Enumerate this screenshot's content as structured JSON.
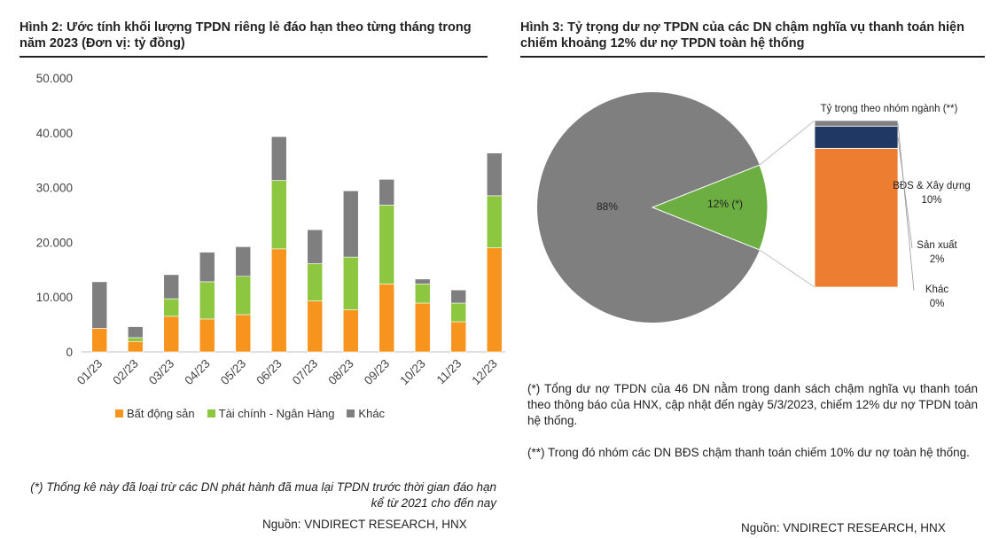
{
  "left": {
    "title": "Hình 2: Ước tính khối lượng TPDN riêng lẻ đáo hạn theo từng tháng trong năm 2023 (Đơn vị: tỷ đồng)",
    "note": "(*) Thống kê này đã loại trừ các DN phát hành đã mua lại TPDN trước thời gian đáo hạn kể từ 2021 cho đến nay",
    "source": "Nguồn: VNDIRECT RESEARCH, HNX"
  },
  "right": {
    "title": "Hình 3: Tỷ trọng dư nợ TPDN của các DN chậm nghĩa vụ thanh toán hiện chiếm khoảng 12% dư nợ TPDN toàn hệ thống",
    "note1": "(*) Tổng dư nợ TPDN của 46 DN nằm trong danh sách chậm nghĩa vụ thanh toán theo thông báo của HNX, cập nhật đến ngày 5/3/2023, chiếm 12% dư nợ TPDN toàn hệ thống.",
    "note2": "(**) Trong đó nhóm các DN BĐS chậm thanh toán chiếm 10% dư nợ toàn hệ thống.",
    "source": "Nguồn: VNDIRECT RESEARCH, HNX"
  },
  "chart_data": [
    {
      "type": "bar",
      "stacked": true,
      "categories": [
        "01/23",
        "02/23",
        "03/23",
        "04/23",
        "05/23",
        "06/23",
        "07/23",
        "08/23",
        "09/23",
        "10/23",
        "11/23",
        "12/23"
      ],
      "series": [
        {
          "name": "Bất động sản",
          "color": "#F7941D",
          "values": [
            4300,
            1900,
            6500,
            6000,
            6800,
            18800,
            9300,
            7700,
            12400,
            8900,
            5500,
            19000
          ]
        },
        {
          "name": "Tài chính - Ngân Hàng",
          "color": "#8DC63F",
          "values": [
            0,
            700,
            3200,
            6800,
            7000,
            12500,
            6800,
            9600,
            14400,
            3500,
            3400,
            9500
          ]
        },
        {
          "name": "Khác",
          "color": "#7F7F7F",
          "values": [
            8500,
            2000,
            4400,
            5400,
            5400,
            8000,
            6200,
            12100,
            4700,
            900,
            2400,
            7800
          ]
        }
      ],
      "yticks": [
        "0",
        "10.000",
        "20.000",
        "30.000",
        "40.000",
        "50.000"
      ],
      "ylim": [
        0,
        50000
      ],
      "legend": "bottom"
    },
    {
      "type": "pie",
      "slices": [
        {
          "label": "88%",
          "value": 88,
          "color": "#7F7F7F"
        },
        {
          "label": "12% (*)",
          "value": 12,
          "color": "#6DAE43"
        }
      ],
      "breakdown": {
        "title": "Tỷ trọng theo nhóm ngành (**)",
        "items": [
          {
            "name": "BĐS & Xây dựng",
            "pct_label": "10%",
            "value": 10,
            "color": "#ED7D31"
          },
          {
            "name": "Sản xuất",
            "pct_label": "2%",
            "value": 1.6,
            "color": "#1F3864"
          },
          {
            "name": "Khác",
            "pct_label": "0%",
            "value": 0.4,
            "color": "#7F7F7F"
          }
        ]
      }
    }
  ]
}
